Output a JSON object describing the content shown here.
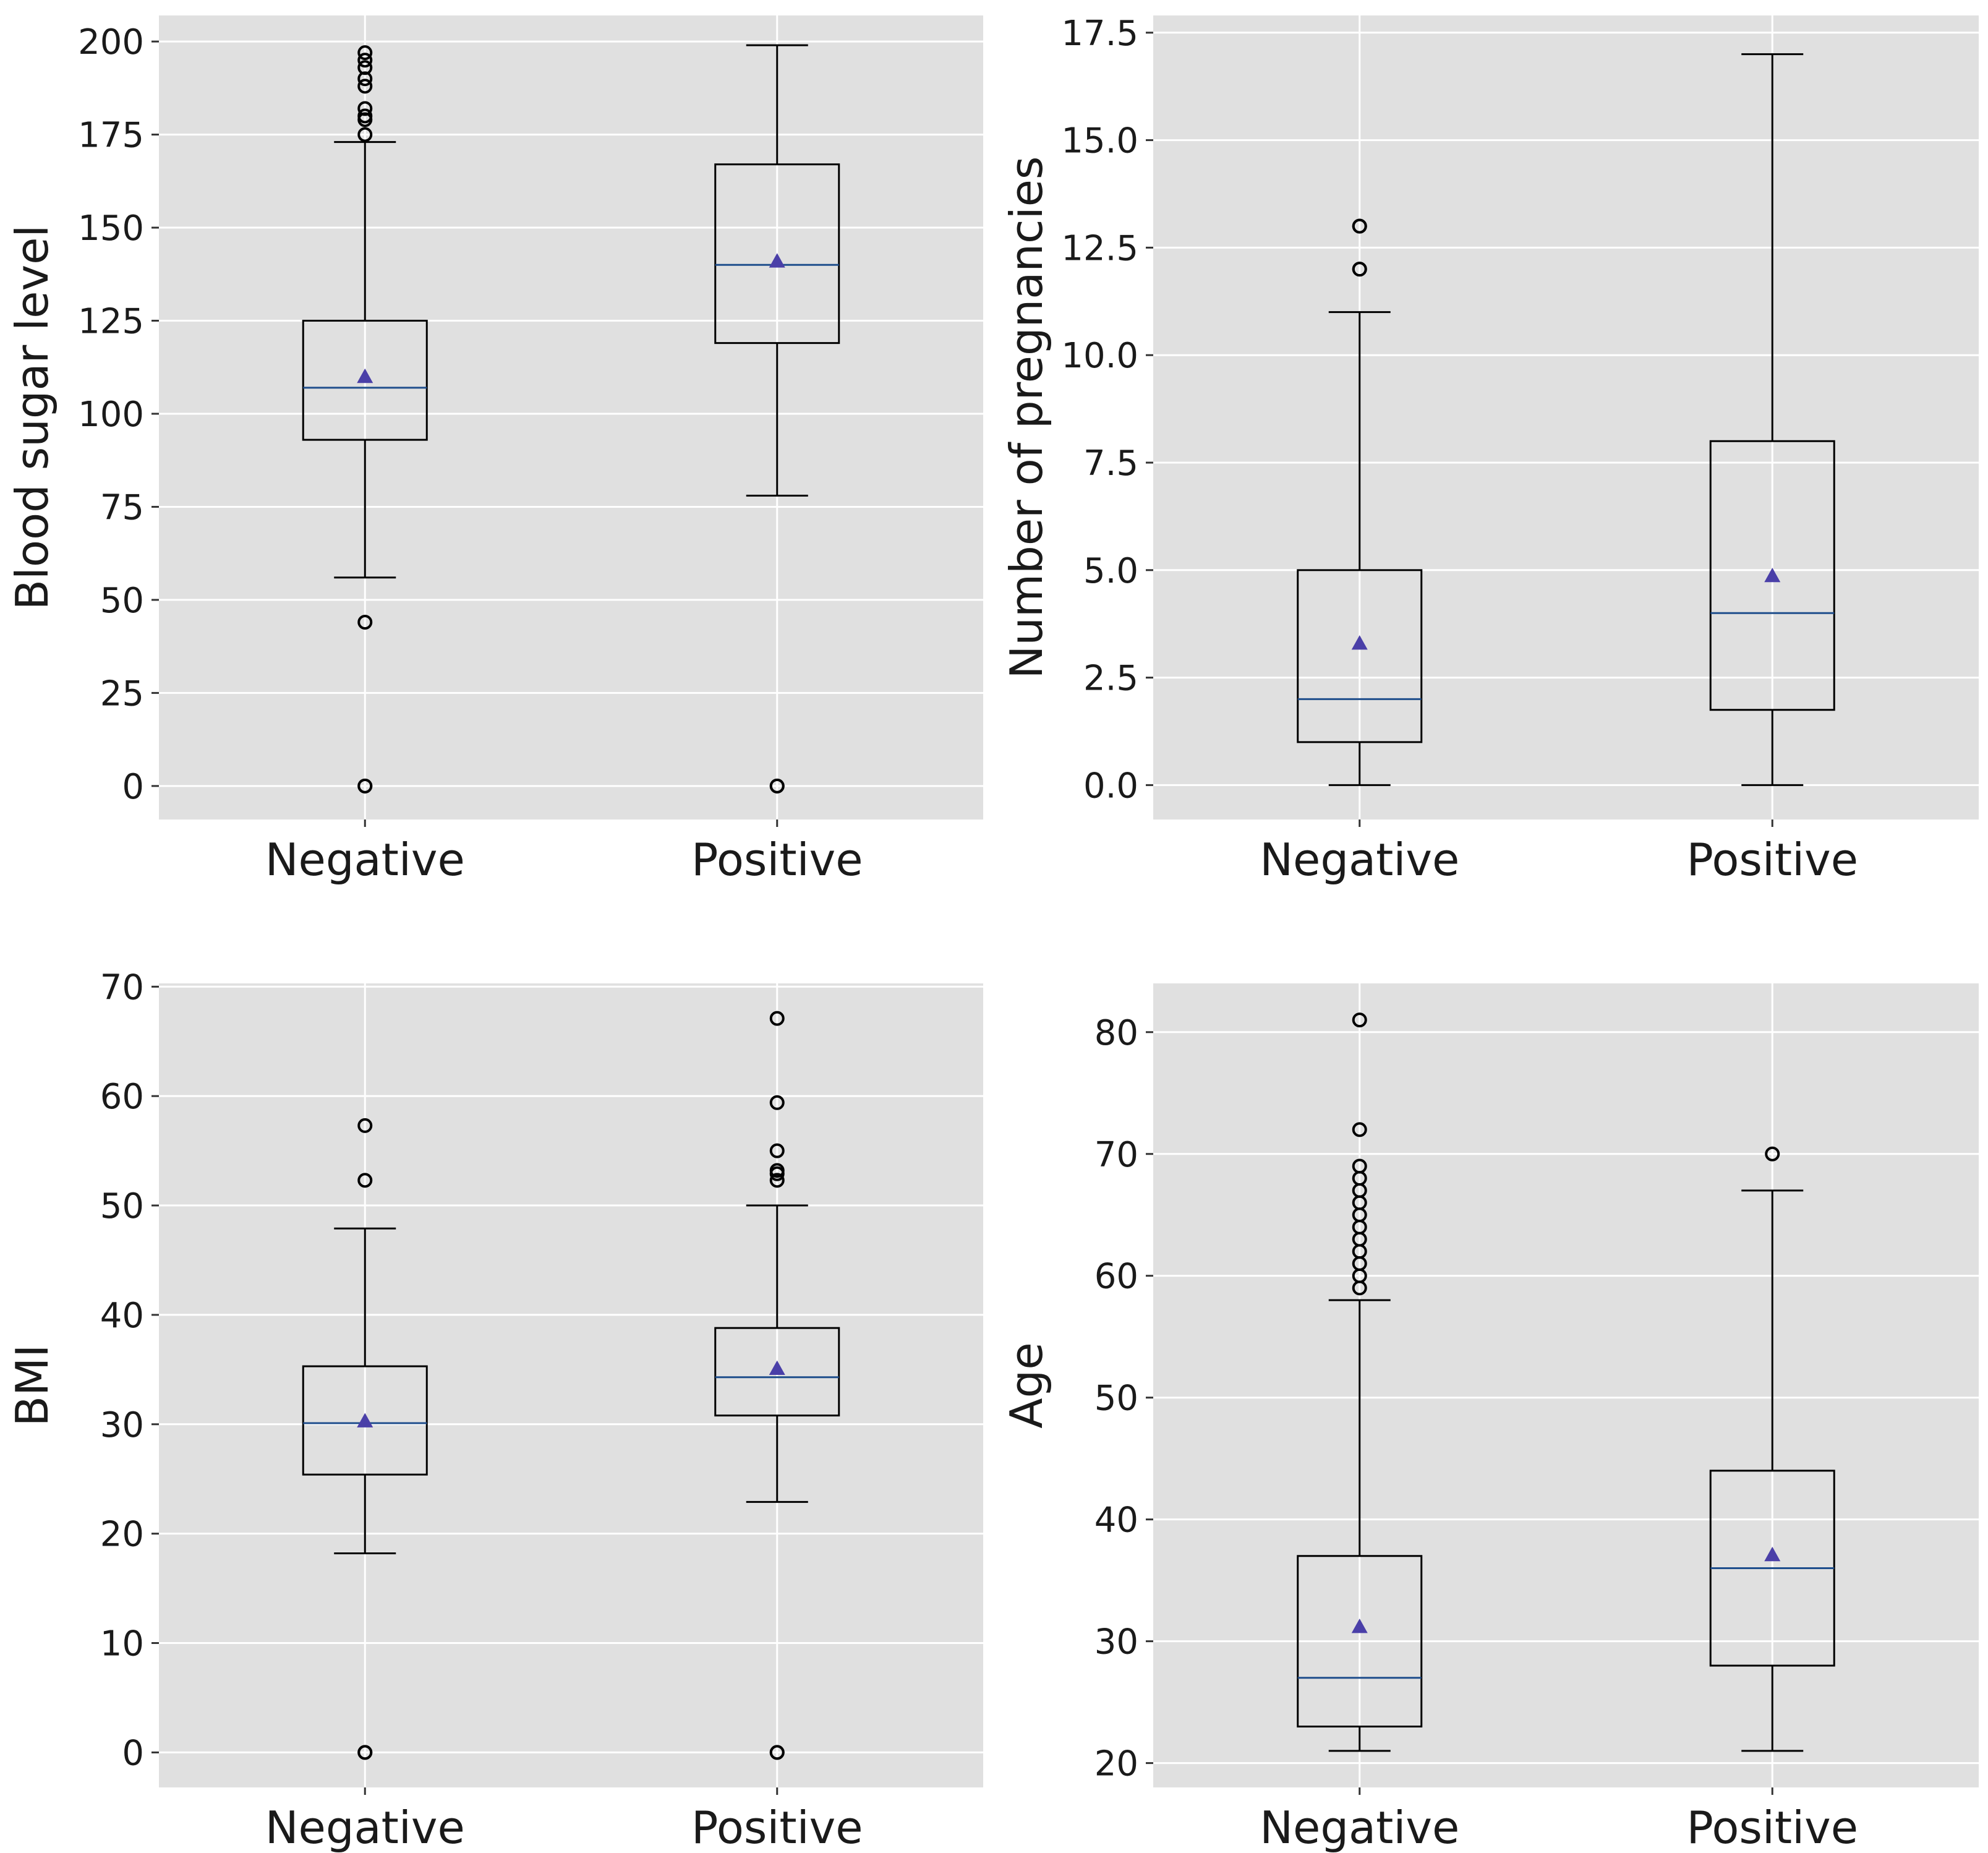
{
  "chart_data": [
    {
      "type": "box",
      "ylabel": "Blood sugar level",
      "categories": [
        "Negative",
        "Positive"
      ],
      "ylim": [
        -9,
        207
      ],
      "yticks": [
        0,
        25,
        50,
        75,
        100,
        125,
        150,
        175,
        200
      ],
      "tick_labels": [
        "0",
        "25",
        "50",
        "75",
        "100",
        "125",
        "150",
        "175",
        "200"
      ],
      "grid": true,
      "boxes": [
        {
          "name": "Negative",
          "whisker_low": 56,
          "q1": 93,
          "median": 107,
          "q3": 125,
          "whisker_high": 173,
          "mean": 110,
          "outliers": [
            0,
            0,
            44,
            175,
            179,
            180,
            182,
            188,
            190,
            193,
            195,
            197
          ]
        },
        {
          "name": "Positive",
          "whisker_low": 78,
          "q1": 119,
          "median": 140,
          "q3": 167,
          "whisker_high": 199,
          "mean": 141,
          "outliers": [
            0,
            0
          ]
        }
      ]
    },
    {
      "type": "box",
      "ylabel": "Number of pregnancies",
      "categories": [
        "Negative",
        "Positive"
      ],
      "ylim": [
        -0.8,
        17.9
      ],
      "yticks": [
        0,
        2.5,
        5,
        7.5,
        10,
        12.5,
        15,
        17.5
      ],
      "tick_labels": [
        "0.0",
        "2.5",
        "5.0",
        "7.5",
        "10.0",
        "12.5",
        "15.0",
        "17.5"
      ],
      "grid": true,
      "boxes": [
        {
          "name": "Negative",
          "whisker_low": 0,
          "q1": 1,
          "median": 2,
          "q3": 5,
          "whisker_high": 11,
          "mean": 3.3,
          "outliers": [
            12,
            12,
            13,
            13
          ]
        },
        {
          "name": "Positive",
          "whisker_low": 0,
          "q1": 1.75,
          "median": 4,
          "q3": 8,
          "whisker_high": 17,
          "mean": 4.87,
          "outliers": []
        }
      ]
    },
    {
      "type": "box",
      "ylabel": "BMI",
      "categories": [
        "Negative",
        "Positive"
      ],
      "ylim": [
        -3.2,
        70.3
      ],
      "yticks": [
        0,
        10,
        20,
        30,
        40,
        50,
        60,
        70
      ],
      "tick_labels": [
        "0",
        "10",
        "20",
        "30",
        "40",
        "50",
        "60",
        "70"
      ],
      "grid": true,
      "boxes": [
        {
          "name": "Negative",
          "whisker_low": 18.2,
          "q1": 25.4,
          "median": 30.1,
          "q3": 35.3,
          "whisker_high": 47.9,
          "mean": 30.3,
          "outliers": [
            0,
            0,
            52.3,
            57.3
          ]
        },
        {
          "name": "Positive",
          "whisker_low": 22.9,
          "q1": 30.8,
          "median": 34.3,
          "q3": 38.8,
          "whisker_high": 50,
          "mean": 35.1,
          "outliers": [
            0,
            0,
            52.3,
            52.9,
            53.2,
            55,
            59.4,
            67.1
          ]
        }
      ]
    },
    {
      "type": "box",
      "ylabel": "Age",
      "categories": [
        "Negative",
        "Positive"
      ],
      "ylim": [
        18,
        84
      ],
      "yticks": [
        20,
        30,
        40,
        50,
        60,
        70,
        80
      ],
      "tick_labels": [
        "20",
        "30",
        "40",
        "50",
        "60",
        "70",
        "80"
      ],
      "grid": true,
      "boxes": [
        {
          "name": "Negative",
          "whisker_low": 21,
          "q1": 23,
          "median": 27,
          "q3": 37,
          "whisker_high": 58,
          "mean": 31.2,
          "outliers": [
            59,
            60,
            61,
            62,
            63,
            64,
            65,
            66,
            67,
            68,
            69,
            72,
            81
          ]
        },
        {
          "name": "Positive",
          "whisker_low": 21,
          "q1": 28,
          "median": 36,
          "q3": 44,
          "whisker_high": 67,
          "mean": 37.1,
          "outliers": [
            70
          ]
        }
      ]
    }
  ],
  "colors": {
    "panel_bg": "#e0e0e0",
    "grid": "#ffffff",
    "box_line": "#000000",
    "median_line": "#1f4e8c",
    "mean_marker": "#4a3fa8"
  }
}
